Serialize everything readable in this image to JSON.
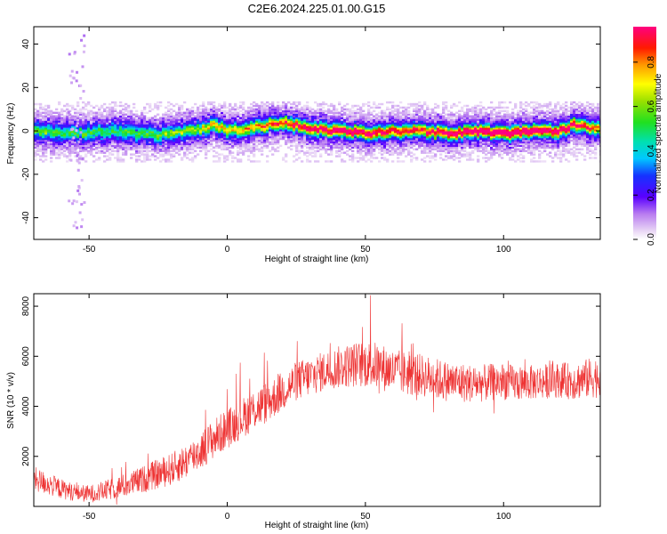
{
  "title": "C2E6.2024.225.01.00.G15",
  "colors": {
    "snr_line": "#ee3333",
    "axis": "#000000"
  },
  "chart_data": [
    {
      "type": "heatmap",
      "title": "C2E6.2024.225.01.00.G15",
      "xlabel": "Height of straight line (km)",
      "ylabel": "Frequency (Hz)",
      "xlim": [
        -70,
        135
      ],
      "ylim": [
        -50,
        48
      ],
      "x_ticks": [
        -50,
        0,
        50,
        100
      ],
      "y_ticks": [
        -40,
        -20,
        0,
        20,
        40
      ],
      "colorbar": {
        "label": "Normalized spectral amplitude",
        "range": [
          0,
          0.96
        ],
        "ticks": [
          0.0,
          0.2,
          0.4,
          0.6,
          0.8
        ]
      },
      "ridge": {
        "description_x": [
          -70,
          -55,
          -40,
          -25,
          -10,
          -5,
          0,
          10,
          20,
          30,
          40,
          50,
          60,
          70,
          80,
          90,
          100,
          110,
          120,
          125,
          135
        ],
        "center_freq": [
          0,
          -1,
          0,
          -2,
          1,
          3,
          0,
          2,
          4,
          1,
          0,
          -1,
          0,
          0,
          -1,
          0,
          -1,
          0,
          0,
          3,
          1
        ],
        "peak_amplitude": [
          0.35,
          0.3,
          0.3,
          0.35,
          0.45,
          0.55,
          0.5,
          0.6,
          0.7,
          0.8,
          0.85,
          0.8,
          0.75,
          0.7,
          0.85,
          0.9,
          0.95,
          0.95,
          0.85,
          0.8,
          0.6
        ]
      }
    },
    {
      "type": "line",
      "xlabel": "Height of straight line (km)",
      "ylabel": "SNR (10 * v/v)",
      "xlim": [
        -70,
        135
      ],
      "ylim": [
        0,
        8500
      ],
      "x_ticks": [
        -50,
        0,
        50,
        100
      ],
      "y_ticks": [
        2000,
        4000,
        6000,
        8000
      ],
      "series": [
        {
          "x": [
            -70,
            -65,
            -60,
            -55,
            -50,
            -45,
            -40,
            -35,
            -30,
            -25,
            -20,
            -15,
            -10,
            -5,
            0,
            5,
            10,
            15,
            20,
            25,
            30,
            35,
            40,
            45,
            50,
            55,
            60,
            65,
            70,
            75,
            80,
            85,
            90,
            95,
            100,
            105,
            110,
            115,
            120,
            125,
            130,
            135
          ],
          "y": [
            1100,
            900,
            700,
            550,
            500,
            600,
            750,
            900,
            1100,
            1300,
            1500,
            1800,
            2200,
            2700,
            3100,
            3500,
            3900,
            4200,
            4600,
            5000,
            5200,
            5400,
            5550,
            5650,
            5700,
            5600,
            5400,
            5300,
            5250,
            5100,
            5000,
            4950,
            4900,
            4950,
            5000,
            4900,
            4950,
            5000,
            5050,
            5000,
            5100,
            5200
          ],
          "noise_amplitude": [
            500,
            450,
            400,
            350,
            350,
            400,
            450,
            500,
            550,
            600,
            650,
            700,
            750,
            800,
            800,
            800,
            850,
            850,
            800,
            800,
            800,
            800,
            850,
            900,
            950,
            950,
            900,
            900,
            850,
            850,
            800,
            800,
            750,
            750,
            750,
            700,
            700,
            700,
            700,
            750,
            800,
            850
          ]
        }
      ]
    }
  ]
}
